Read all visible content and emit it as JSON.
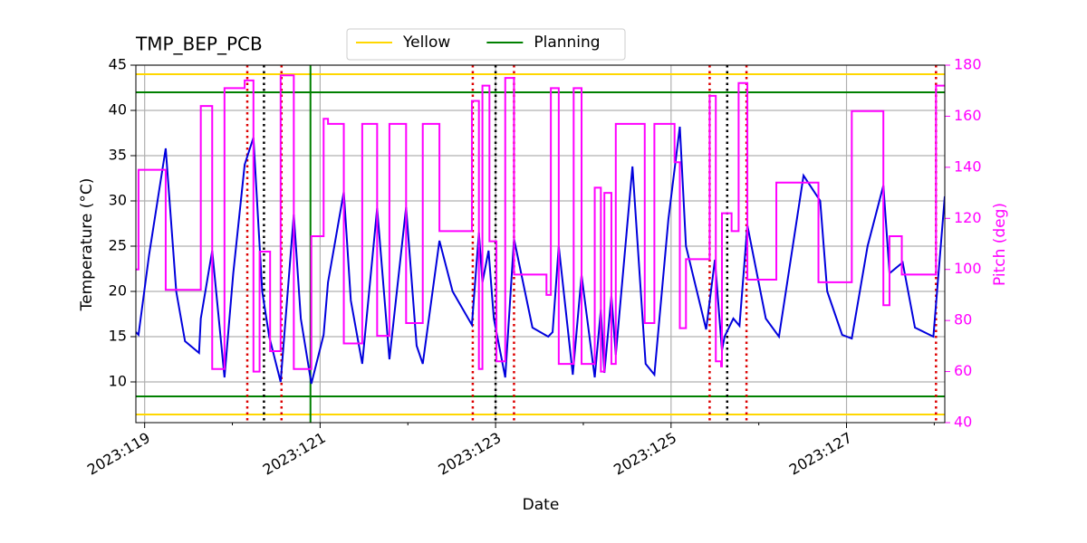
{
  "chart_data": {
    "type": "line",
    "title": "TMP_BEP_PCB",
    "xlabel": "Date",
    "ylabel": "Temperature (°C)",
    "y2label": "Pitch (deg)",
    "xlim": [
      118.9,
      128.12
    ],
    "xticks": [
      {
        "value": 119,
        "label": "2023:119"
      },
      {
        "value": 121,
        "label": "2023:121"
      },
      {
        "value": 123,
        "label": "2023:123"
      },
      {
        "value": 125,
        "label": "2023:125"
      },
      {
        "value": 127,
        "label": "2023:127"
      }
    ],
    "xminorticks": [
      120,
      122,
      124,
      126,
      128
    ],
    "ylim": [
      5.5,
      45
    ],
    "yticks": [
      10,
      15,
      20,
      25,
      30,
      35,
      40,
      45
    ],
    "y2lim": [
      40,
      180
    ],
    "y2ticks": [
      40,
      60,
      80,
      100,
      120,
      140,
      160,
      180
    ],
    "y2color": "#ff00ff",
    "grid": true,
    "legend": "upper center",
    "series": [
      {
        "color": "#0000dd",
        "x": [
          118.9,
          118.93,
          119.05,
          119.24,
          119.36,
          119.46,
          119.62,
          119.64,
          119.77,
          119.91,
          120.01,
          120.14,
          120.24,
          120.34,
          120.42,
          120.55,
          120.7,
          120.78,
          120.9,
          121.04,
          121.09,
          121.27,
          121.35,
          121.48,
          121.65,
          121.79,
          121.98,
          122.1,
          122.17,
          122.36,
          122.51,
          122.73,
          122.81,
          122.85,
          122.92,
          122.98,
          123.11,
          123.21,
          123.42,
          123.6,
          123.65,
          123.72,
          123.88,
          123.98,
          124.13,
          124.2,
          124.24,
          124.32,
          124.37,
          124.56,
          124.71,
          124.81,
          124.97,
          125.1,
          125.17,
          125.4,
          125.5,
          125.58,
          125.61,
          125.71,
          125.78,
          125.87,
          126.08,
          126.23,
          126.51,
          126.7,
          126.78,
          126.95,
          127.06,
          127.24,
          127.42,
          127.49,
          127.64,
          127.78,
          127.99,
          128.12
        ],
        "values": [
          15.5,
          15.2,
          24,
          35.8,
          20,
          14.5,
          13.2,
          17,
          24.5,
          10.5,
          22,
          34,
          37,
          20,
          15,
          10,
          28.5,
          17,
          9.8,
          15.2,
          21,
          31,
          19,
          12,
          29.2,
          12.5,
          29.3,
          14,
          12,
          25.6,
          20,
          16.3,
          26.5,
          21,
          24.5,
          17,
          10.5,
          25.8,
          16,
          15,
          15.5,
          25,
          10.8,
          21.8,
          10.5,
          18,
          11,
          19.5,
          13,
          33.8,
          12,
          10.8,
          28,
          38.2,
          25,
          15.8,
          23.5,
          13.5,
          15,
          17,
          16.2,
          27.3,
          17,
          15,
          32.8,
          30,
          20,
          15.2,
          14.8,
          25,
          31.7,
          22,
          23.2,
          16,
          15,
          30.5
        ]
      },
      {
        "color": "#ff00ff",
        "axis": "y2",
        "drawstyle": "steps-post",
        "x": [
          118.9,
          118.93,
          119.24,
          119.64,
          119.77,
          119.91,
          120.14,
          120.24,
          120.31,
          120.43,
          120.55,
          120.7,
          120.9,
          121.04,
          121.09,
          121.27,
          121.48,
          121.65,
          121.79,
          121.98,
          122.17,
          122.36,
          122.73,
          122.81,
          122.85,
          122.93,
          123.01,
          123.11,
          123.21,
          123.58,
          123.63,
          123.72,
          123.89,
          123.98,
          124.13,
          124.2,
          124.24,
          124.32,
          124.37,
          124.7,
          124.81,
          125.04,
          125.1,
          125.17,
          125.44,
          125.51,
          125.57,
          125.58,
          125.69,
          125.77,
          125.87,
          126.2,
          126.68,
          127.06,
          127.42,
          127.49,
          127.63,
          128.02,
          128.12
        ],
        "values": [
          100,
          139,
          92,
          164,
          61,
          171,
          174,
          60,
          107,
          68,
          176,
          61,
          113,
          159,
          157,
          71,
          157,
          74,
          157,
          79,
          157,
          115,
          166,
          61,
          172,
          111,
          64,
          175,
          98,
          90,
          171,
          63,
          171,
          63,
          132,
          60,
          130,
          63,
          157,
          79,
          157,
          142,
          77,
          104,
          168,
          64,
          62,
          122,
          115,
          173,
          96,
          134,
          95,
          162,
          86,
          113,
          98,
          172,
          172
        ]
      }
    ],
    "limits": [
      {
        "name": "Yellow",
        "color": "#ffd700",
        "values": [
          44,
          6.4
        ]
      },
      {
        "name": "Planning",
        "color": "#008000",
        "values": [
          42,
          8.4
        ],
        "x": [
          120.89
        ]
      }
    ],
    "vlines": [
      {
        "color": "#dd0000",
        "style": "dotted",
        "x": [
          120.17,
          120.56,
          122.74,
          123.21,
          125.44,
          125.86,
          128.02
        ]
      },
      {
        "color": "#000000",
        "style": "dotted",
        "x": [
          120.36,
          123.0,
          125.64
        ]
      }
    ]
  }
}
